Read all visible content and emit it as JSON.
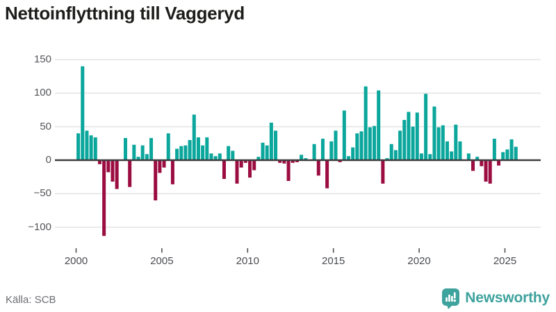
{
  "page": {
    "title": "Nettoinflyttning till Vaggeryd"
  },
  "footer": {
    "source": "Källa: SCB",
    "brand": "Newsworthy"
  },
  "chart_data": {
    "type": "bar",
    "title": "Nettoinflyttning till Vaggeryd",
    "frequency": "quarterly",
    "start_period": "2000 Q1",
    "end_period": "2025 Q3",
    "x_tick_labels": [
      "2000",
      "2005",
      "2010",
      "2015",
      "2020",
      "2025"
    ],
    "y_tick_labels": [
      "150",
      "100",
      "50",
      "0",
      "−50",
      "−100"
    ],
    "y_ticks": [
      150,
      100,
      50,
      0,
      -50,
      -100
    ],
    "ylim": [
      -125,
      155
    ],
    "grid": "horizontal",
    "legend": "none",
    "xlabel": "",
    "ylabel": "",
    "positive_color": "#0BA69C",
    "negative_color": "#9B0C41",
    "values": [
      40,
      140,
      44,
      37,
      34,
      -6,
      -113,
      -18,
      -32,
      -43,
      0,
      33,
      -40,
      23,
      5,
      22,
      9,
      33,
      -60,
      -19,
      -11,
      40,
      -36,
      17,
      21,
      22,
      30,
      68,
      34,
      22,
      34,
      10,
      6,
      10,
      -28,
      21,
      14,
      -35,
      -11,
      -4,
      -26,
      -15,
      5,
      26,
      22,
      56,
      44,
      -4,
      -5,
      -31,
      -4,
      -3,
      8,
      3,
      0,
      24,
      -23,
      32,
      -42,
      28,
      44,
      -3,
      74,
      6,
      19,
      40,
      43,
      110,
      49,
      51,
      104,
      -35,
      3,
      24,
      15,
      44,
      60,
      72,
      50,
      71,
      10,
      99,
      9,
      80,
      49,
      52,
      28,
      13,
      53,
      28,
      0,
      10,
      -16,
      5,
      -9,
      -32,
      -35,
      32,
      -8,
      12,
      16,
      31,
      20
    ]
  }
}
